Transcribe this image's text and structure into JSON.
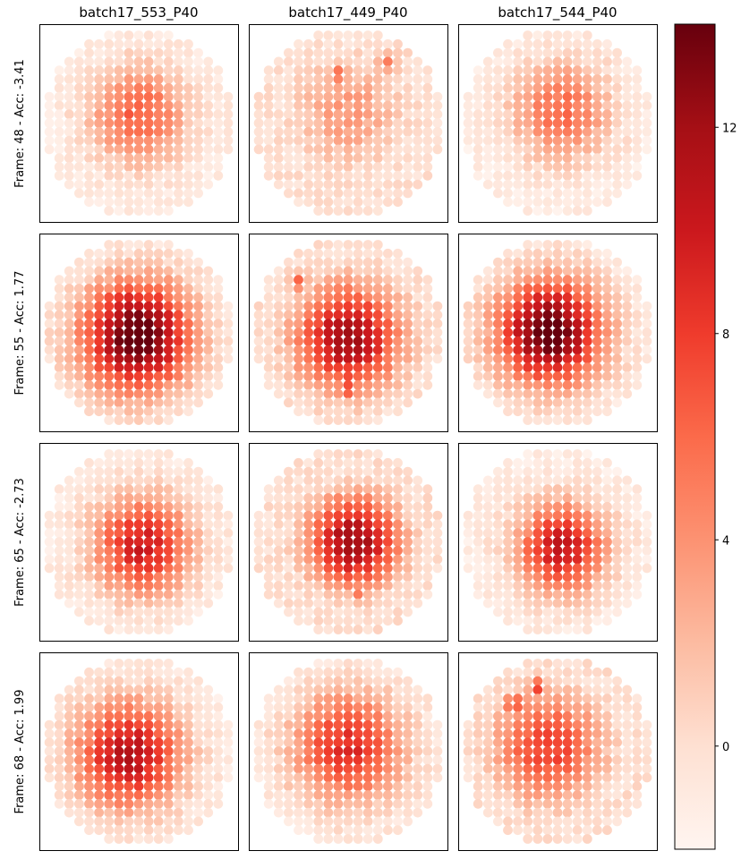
{
  "chart_data": {
    "type": "heatmap",
    "layout": "3x4 grid of hexagonal sensor-pixel maps",
    "columns": [
      "batch17_553_P40",
      "batch17_449_P40",
      "batch17_544_P40"
    ],
    "rows": [
      {
        "label": "Frame: 48 - Acc: -3.41",
        "frame": 48,
        "acc": -3.41
      },
      {
        "label": "Frame: 55 - Acc: 1.77",
        "frame": 55,
        "acc": 1.77
      },
      {
        "label": "Frame: 65 - Acc: -2.73",
        "frame": 65,
        "acc": -2.73
      },
      {
        "label": "Frame: 68 - Acc: 1.99",
        "frame": 68,
        "acc": 1.99
      }
    ],
    "colorbar": {
      "colormap": "Reds",
      "vmin": -2,
      "vmax": 14,
      "ticks": [
        0,
        4,
        8,
        12
      ],
      "tick_labels": [
        "0",
        "4",
        "8",
        "12"
      ]
    },
    "grid_rows": [
      7,
      11,
      13,
      15,
      17,
      17,
      17,
      19,
      19,
      19,
      19,
      19,
      19,
      19,
      17,
      17,
      17,
      15,
      13,
      11,
      7
    ],
    "panels": [
      [
        {
          "peak": 6.5,
          "cx": 0.5,
          "cy": 0.46,
          "spread": 0.55,
          "hot": []
        },
        {
          "peak": 3.5,
          "cx": 0.5,
          "cy": 0.45,
          "spread": 0.65,
          "hot": [
            [
              0.45,
              0.25,
              5.5
            ],
            [
              0.7,
              0.2,
              5.0
            ]
          ]
        },
        {
          "peak": 6.0,
          "cx": 0.52,
          "cy": 0.44,
          "spread": 0.55,
          "hot": []
        }
      ],
      [
        {
          "peak": 14.8,
          "cx": 0.49,
          "cy": 0.52,
          "spread": 0.62,
          "hot": []
        },
        {
          "peak": 12.0,
          "cx": 0.5,
          "cy": 0.53,
          "spread": 0.6,
          "hot": [
            [
              0.5,
              0.78,
              8.5
            ],
            [
              0.25,
              0.25,
              6.5
            ]
          ]
        },
        {
          "peak": 14.5,
          "cx": 0.46,
          "cy": 0.5,
          "spread": 0.6,
          "hot": []
        }
      ],
      [
        {
          "peak": 10.0,
          "cx": 0.52,
          "cy": 0.52,
          "spread": 0.55,
          "hot": []
        },
        {
          "peak": 12.5,
          "cx": 0.53,
          "cy": 0.5,
          "spread": 0.52,
          "hot": [
            [
              0.55,
              0.76,
              5.0
            ]
          ]
        },
        {
          "peak": 10.5,
          "cx": 0.52,
          "cy": 0.53,
          "spread": 0.5,
          "hot": []
        }
      ],
      [
        {
          "peak": 11.0,
          "cx": 0.45,
          "cy": 0.52,
          "spread": 0.6,
          "hot": []
        },
        {
          "peak": 9.0,
          "cx": 0.5,
          "cy": 0.48,
          "spread": 0.62,
          "hot": []
        },
        {
          "peak": 8.0,
          "cx": 0.45,
          "cy": 0.48,
          "spread": 0.62,
          "hot": [
            [
              0.28,
              0.26,
              8.0
            ],
            [
              0.4,
              0.18,
              8.0
            ]
          ]
        }
      ]
    ]
  }
}
